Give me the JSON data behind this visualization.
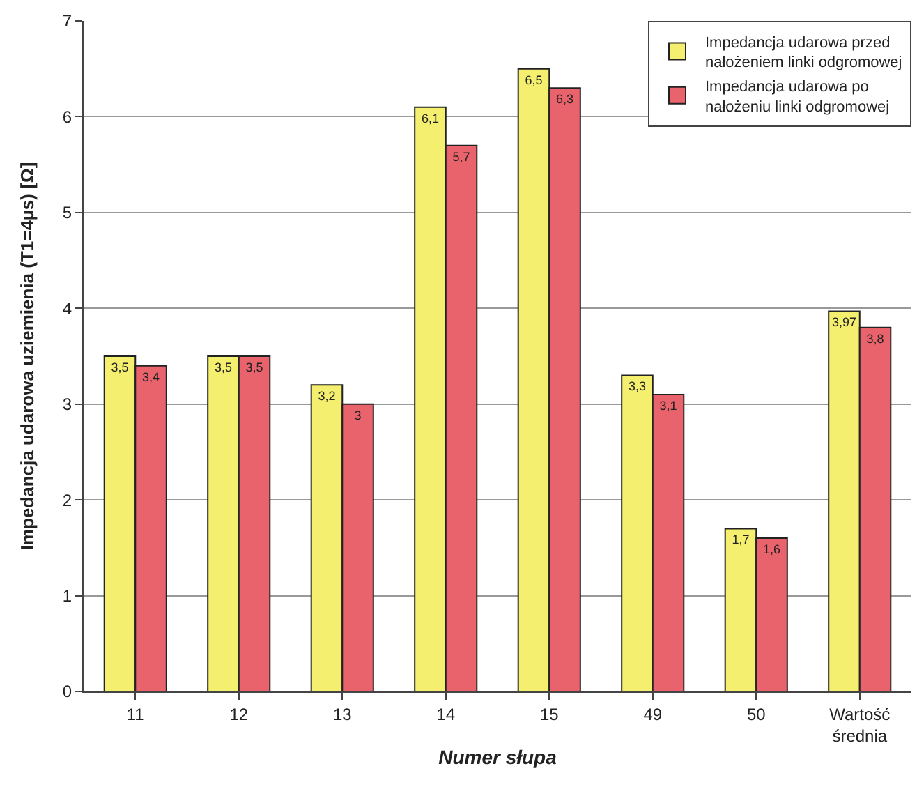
{
  "chart_data": {
    "type": "bar",
    "xlabel": "Numer słupa",
    "ylabel": "Impedancja udarowa uziemienia (T1=4µs) [Ω]",
    "categories": [
      "11",
      "12",
      "13",
      "14",
      "15",
      "49",
      "50",
      "Wartość średnia"
    ],
    "series": [
      {
        "name": "Impedancja udarowa przed nałożeniem linki odgromowej",
        "color": "#f4ef6e",
        "values": [
          3.5,
          3.5,
          3.2,
          6.1,
          6.5,
          3.3,
          1.7,
          3.97
        ],
        "value_labels": [
          "3,5",
          "3,5",
          "3,2",
          "6,1",
          "6,5",
          "3,3",
          "1,7",
          "3,97"
        ]
      },
      {
        "name": "Impedancja udarowa po nałożeniu linki odgromowej",
        "color": "#e8636c",
        "values": [
          3.4,
          3.5,
          3.0,
          5.7,
          6.3,
          3.1,
          1.6,
          3.8
        ],
        "value_labels": [
          "3,4",
          "3,5",
          "3",
          "5,7",
          "6,3",
          "3,1",
          "1,6",
          "3,8"
        ]
      }
    ],
    "ylim": [
      0,
      7
    ],
    "yticks": [
      0,
      1,
      2,
      3,
      4,
      5,
      6,
      7
    ],
    "grid": "y",
    "legend": "top right"
  }
}
